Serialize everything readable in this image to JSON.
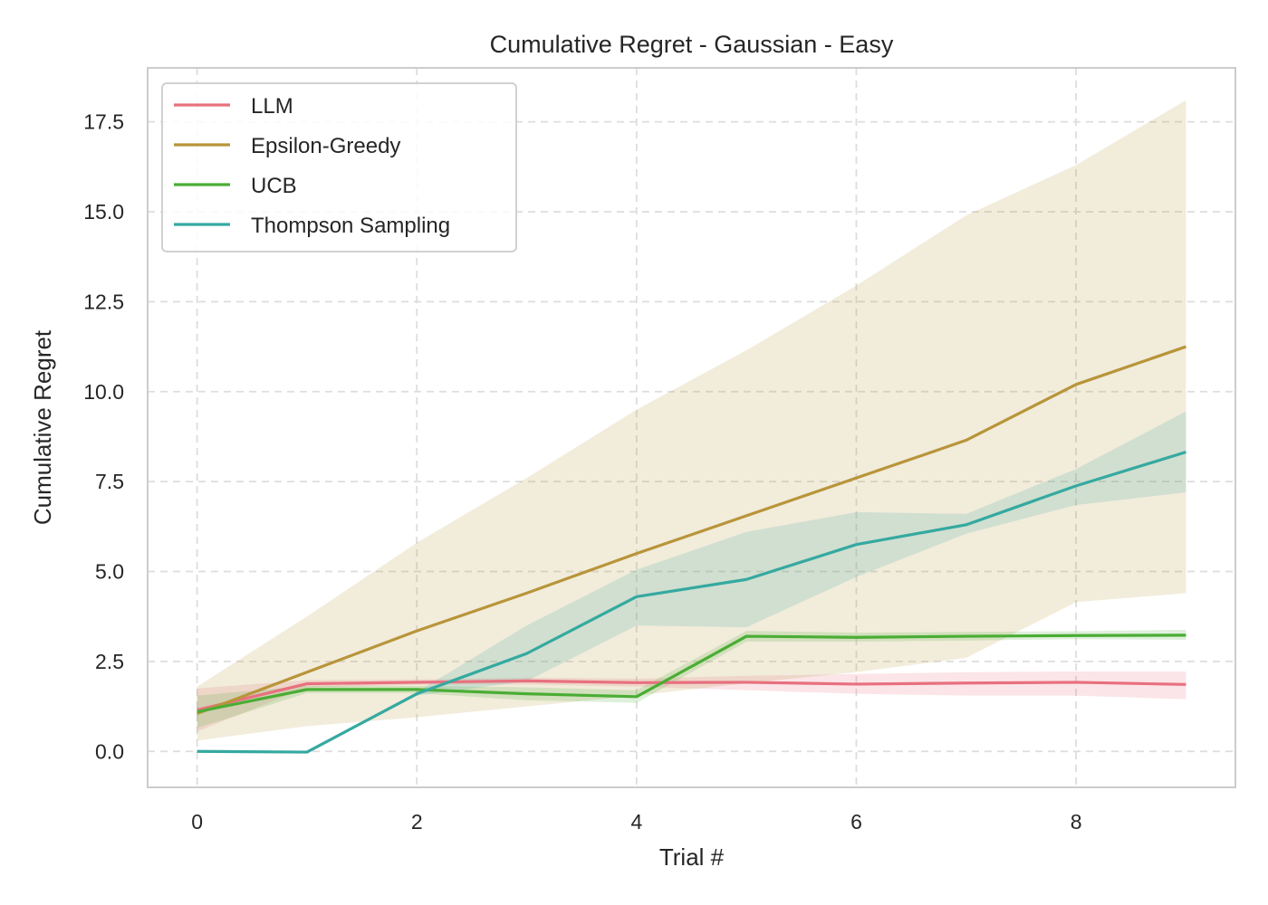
{
  "chart_data": {
    "type": "line",
    "title": "Cumulative Regret - Gaussian - Easy",
    "xlabel": "Trial #",
    "ylabel": "Cumulative Regret",
    "xlim": [
      -0.45,
      9.45
    ],
    "ylim": [
      -1.0,
      19.0
    ],
    "xticks": [
      0,
      2,
      4,
      6,
      8
    ],
    "xtick_labels": [
      "0",
      "2",
      "4",
      "6",
      "8"
    ],
    "yticks": [
      0,
      2.5,
      5,
      7.5,
      10,
      12.5,
      15,
      17.5
    ],
    "ytick_labels": [
      "0.0",
      "2.5",
      "5.0",
      "7.5",
      "10.0",
      "12.5",
      "15.0",
      "17.5"
    ],
    "grid": true,
    "legend_position": "top-left",
    "x": [
      0,
      1,
      2,
      3,
      4,
      5,
      6,
      7,
      8,
      9
    ],
    "series": [
      {
        "name": "LLM",
        "color": "#e8707f",
        "values": [
          1.15,
          1.88,
          1.92,
          1.96,
          1.91,
          1.92,
          1.87,
          1.9,
          1.92,
          1.86
        ],
        "lower": [
          0.55,
          1.78,
          1.85,
          1.86,
          1.8,
          1.7,
          1.6,
          1.55,
          1.55,
          1.45
        ],
        "upper": [
          1.75,
          1.98,
          2.0,
          2.05,
          2.02,
          2.1,
          2.15,
          2.2,
          2.22,
          2.22
        ]
      },
      {
        "name": "Epsilon-Greedy",
        "color": "#b8953a",
        "values": [
          1.05,
          2.2,
          3.35,
          4.4,
          5.5,
          6.55,
          7.6,
          8.65,
          10.2,
          11.25
        ],
        "lower": [
          0.3,
          0.7,
          0.95,
          1.25,
          1.55,
          1.9,
          2.2,
          2.6,
          4.15,
          4.4
        ],
        "upper": [
          1.8,
          3.75,
          5.8,
          7.6,
          9.5,
          11.15,
          12.95,
          14.9,
          16.3,
          18.1
        ]
      },
      {
        "name": "UCB",
        "color": "#4aad35",
        "values": [
          1.1,
          1.72,
          1.72,
          1.6,
          1.52,
          3.2,
          3.17,
          3.2,
          3.22,
          3.23
        ],
        "lower": [
          0.65,
          1.62,
          1.62,
          1.42,
          1.35,
          3.05,
          3.05,
          3.08,
          3.12,
          3.1
        ],
        "upper": [
          1.55,
          1.82,
          1.82,
          1.78,
          1.7,
          3.35,
          3.3,
          3.32,
          3.34,
          3.38
        ]
      },
      {
        "name": "Thompson Sampling",
        "color": "#35a9a0",
        "values": [
          0.0,
          -0.02,
          1.6,
          2.72,
          4.3,
          4.78,
          5.75,
          6.3,
          7.38,
          8.32
        ],
        "lower": [
          0.0,
          -0.02,
          1.55,
          1.95,
          3.5,
          3.45,
          4.85,
          6.05,
          6.85,
          7.2
        ],
        "upper": [
          0.0,
          -0.02,
          1.65,
          3.5,
          5.05,
          6.1,
          6.65,
          6.6,
          7.85,
          9.45
        ]
      }
    ]
  }
}
